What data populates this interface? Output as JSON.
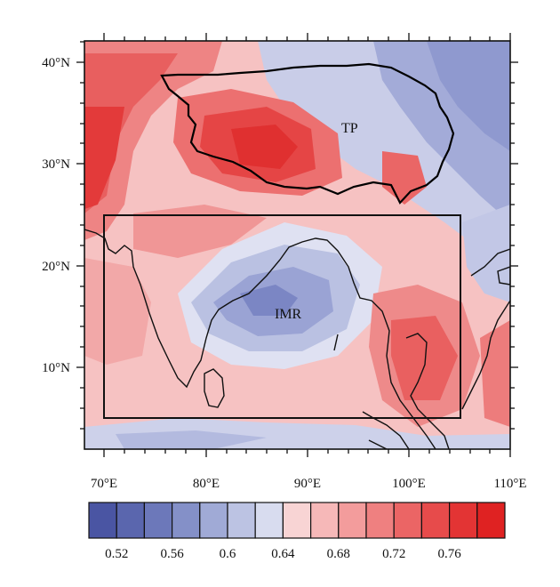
{
  "map": {
    "lon_labels": [
      "70°E",
      "80°E",
      "90°E",
      "100°E",
      "110°E"
    ],
    "lat_labels": [
      "40°N",
      "30°N",
      "20°N",
      "10°N"
    ],
    "regions": [
      {
        "id": "tp",
        "label": "TP"
      },
      {
        "id": "imr",
        "label": "IMR"
      }
    ],
    "box_region": {
      "lon_min": 70,
      "lon_max": 105,
      "lat_min": 5,
      "lat_max": 25
    }
  },
  "colorbar": {
    "colors": [
      "#4a55a3",
      "#5a66ae",
      "#6c78ba",
      "#8490c8",
      "#a0aad6",
      "#bcc3e3",
      "#d8dcef",
      "#f8d4d4",
      "#f6b8b8",
      "#f39c9c",
      "#ef8080",
      "#eb6565",
      "#e74b4b",
      "#e33434",
      "#df2222"
    ],
    "labels": [
      "0.52",
      "0.56",
      "0.6",
      "0.64",
      "0.68",
      "0.72",
      "0.76"
    ]
  }
}
